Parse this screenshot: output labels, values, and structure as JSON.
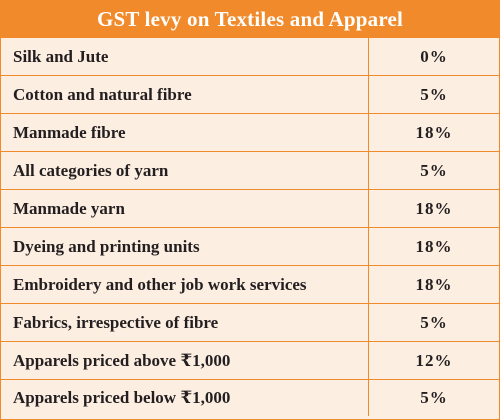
{
  "table": {
    "title": "GST levy on Textiles and Apparel",
    "rows": [
      {
        "category": "Silk and Jute",
        "rate": "0%"
      },
      {
        "category": "Cotton and natural fibre",
        "rate": "5%"
      },
      {
        "category": "Manmade fibre",
        "rate": "18%"
      },
      {
        "category": "All categories of yarn",
        "rate": "5%"
      },
      {
        "category": "Manmade yarn",
        "rate": "18%"
      },
      {
        "category": "Dyeing and printing units",
        "rate": "18%"
      },
      {
        "category": "Embroidery and other job work services",
        "rate": "18%"
      },
      {
        "category": "Fabrics, irrespective of fibre",
        "rate": "5%"
      },
      {
        "category": "Apparels priced above ₹1,000",
        "rate": "12%"
      },
      {
        "category": "Apparels priced below ₹1,000",
        "rate": "5%"
      }
    ]
  },
  "colors": {
    "header_bg": "#f08a2a",
    "row_bg": "#fdeee2",
    "border": "#f08a2a",
    "text": "#231f20"
  }
}
